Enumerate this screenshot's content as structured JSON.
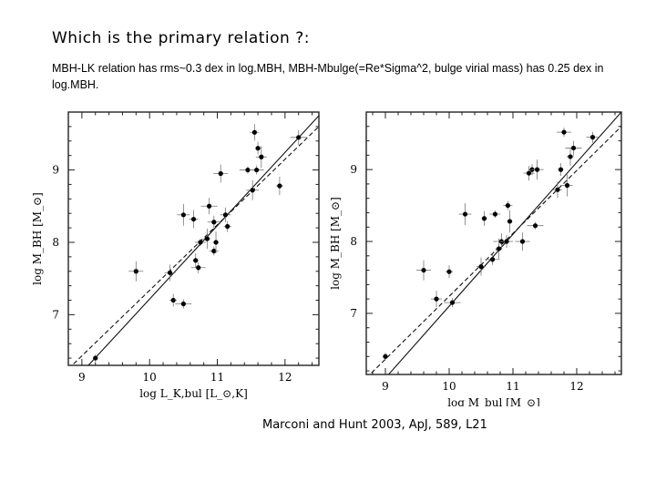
{
  "slide": {
    "title": "Which is the primary relation ?:",
    "paragraph": "MBH-LK relation has rms~0.3 dex in log.MBH, MBH-Mbulge(=Re*Sigma^2, bulge virial mass) has 0.25 dex in log.MBH.",
    "caption": "Marconi and Hunt 2003, ApJ, 589, L21"
  },
  "chart_data": [
    {
      "type": "scatter",
      "title": "",
      "xlabel": "log L_K,bul [L_⊙,K]",
      "ylabel": "log M_BH [M_⊙]",
      "xlim": [
        8.8,
        12.5
      ],
      "ylim": [
        6.3,
        9.8
      ],
      "xticks": [
        "9",
        "10",
        "11",
        "12"
      ],
      "yticks": [
        "7",
        "8",
        "9"
      ],
      "error_bars": true,
      "fit_lines": [
        {
          "style": "solid",
          "from": [
            8.8,
            6.0
          ],
          "to": [
            12.5,
            9.75
          ]
        },
        {
          "style": "dashed",
          "from": [
            8.8,
            6.25
          ],
          "to": [
            12.5,
            9.6
          ]
        }
      ],
      "points": [
        {
          "x": 9.2,
          "y": 6.4
        },
        {
          "x": 9.8,
          "y": 7.6
        },
        {
          "x": 10.3,
          "y": 7.58
        },
        {
          "x": 10.35,
          "y": 7.2
        },
        {
          "x": 10.5,
          "y": 7.15
        },
        {
          "x": 10.5,
          "y": 8.38
        },
        {
          "x": 10.65,
          "y": 8.32
        },
        {
          "x": 10.68,
          "y": 7.75
        },
        {
          "x": 10.72,
          "y": 7.65
        },
        {
          "x": 10.75,
          "y": 8.0
        },
        {
          "x": 10.85,
          "y": 8.05
        },
        {
          "x": 10.88,
          "y": 8.5
        },
        {
          "x": 10.95,
          "y": 8.28
        },
        {
          "x": 10.95,
          "y": 7.88
        },
        {
          "x": 10.98,
          "y": 8.0
        },
        {
          "x": 11.05,
          "y": 8.95
        },
        {
          "x": 11.12,
          "y": 8.38
        },
        {
          "x": 11.15,
          "y": 8.22
        },
        {
          "x": 11.45,
          "y": 9.0
        },
        {
          "x": 11.52,
          "y": 8.72
        },
        {
          "x": 11.55,
          "y": 9.52
        },
        {
          "x": 11.6,
          "y": 9.3
        },
        {
          "x": 11.58,
          "y": 9.0
        },
        {
          "x": 11.65,
          "y": 9.18
        },
        {
          "x": 11.92,
          "y": 8.78
        },
        {
          "x": 12.2,
          "y": 9.45
        }
      ]
    },
    {
      "type": "scatter",
      "title": "",
      "xlabel": "log M_bul [M_⊙]",
      "ylabel": "log M_BH [M_⊙]",
      "xlim": [
        8.7,
        12.7
      ],
      "ylim": [
        6.15,
        9.8
      ],
      "xticks": [
        "9",
        "10",
        "11",
        "12"
      ],
      "yticks": [
        "7",
        "8",
        "9"
      ],
      "error_bars": true,
      "fit_lines": [
        {
          "style": "solid",
          "from": [
            8.7,
            5.8
          ],
          "to": [
            12.7,
            9.8
          ]
        },
        {
          "style": "dashed",
          "from": [
            8.7,
            6.1
          ],
          "to": [
            12.7,
            9.6
          ]
        }
      ],
      "points": [
        {
          "x": 9.0,
          "y": 6.4
        },
        {
          "x": 9.6,
          "y": 7.6
        },
        {
          "x": 9.8,
          "y": 7.2
        },
        {
          "x": 10.0,
          "y": 7.58
        },
        {
          "x": 10.05,
          "y": 7.15
        },
        {
          "x": 10.25,
          "y": 8.38
        },
        {
          "x": 10.5,
          "y": 7.65
        },
        {
          "x": 10.55,
          "y": 8.32
        },
        {
          "x": 10.68,
          "y": 7.75
        },
        {
          "x": 10.72,
          "y": 8.38
        },
        {
          "x": 10.78,
          "y": 7.9
        },
        {
          "x": 10.82,
          "y": 8.0
        },
        {
          "x": 10.9,
          "y": 8.0
        },
        {
          "x": 10.92,
          "y": 8.5
        },
        {
          "x": 10.95,
          "y": 8.28
        },
        {
          "x": 11.15,
          "y": 8.0
        },
        {
          "x": 11.25,
          "y": 8.95
        },
        {
          "x": 11.3,
          "y": 9.0
        },
        {
          "x": 11.35,
          "y": 8.22
        },
        {
          "x": 11.38,
          "y": 9.0
        },
        {
          "x": 11.7,
          "y": 8.72
        },
        {
          "x": 11.75,
          "y": 9.0
        },
        {
          "x": 11.8,
          "y": 9.52
        },
        {
          "x": 11.85,
          "y": 8.78
        },
        {
          "x": 11.9,
          "y": 9.18
        },
        {
          "x": 11.95,
          "y": 9.3
        },
        {
          "x": 12.25,
          "y": 9.45
        }
      ]
    }
  ]
}
